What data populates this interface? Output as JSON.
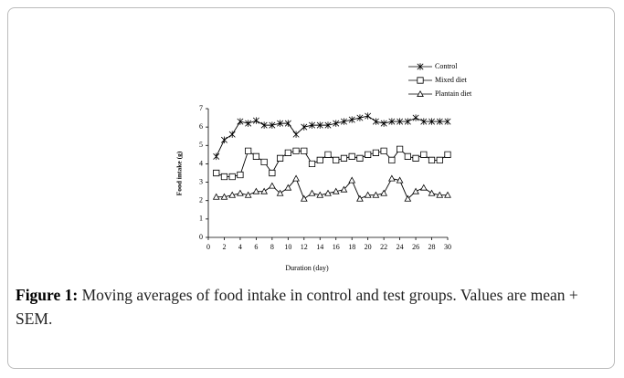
{
  "chart_data": {
    "type": "line",
    "x": [
      1,
      2,
      3,
      4,
      5,
      6,
      7,
      8,
      9,
      10,
      11,
      12,
      13,
      14,
      15,
      16,
      17,
      18,
      19,
      20,
      21,
      22,
      23,
      24,
      25,
      26,
      27,
      28,
      29,
      30
    ],
    "series": [
      {
        "name": "Control",
        "color": "#000000",
        "marker": "star",
        "values": [
          4.4,
          5.3,
          5.6,
          6.3,
          6.2,
          6.35,
          6.1,
          6.1,
          6.2,
          6.2,
          5.6,
          6.0,
          6.1,
          6.1,
          6.1,
          6.2,
          6.3,
          6.4,
          6.5,
          6.6,
          6.3,
          6.2,
          6.3,
          6.3,
          6.3,
          6.5,
          6.3,
          6.3,
          6.3,
          6.3
        ]
      },
      {
        "name": "Mixed diet",
        "color": "#000000",
        "marker": "square",
        "values": [
          3.5,
          3.3,
          3.3,
          3.4,
          4.7,
          4.4,
          4.1,
          3.5,
          4.3,
          4.6,
          4.7,
          4.7,
          4.0,
          4.2,
          4.5,
          4.2,
          4.3,
          4.4,
          4.3,
          4.5,
          4.6,
          4.7,
          4.2,
          4.8,
          4.4,
          4.3,
          4.5,
          4.2,
          4.2,
          4.5
        ]
      },
      {
        "name": "Plantain diet",
        "color": "#000000",
        "marker": "triangle",
        "values": [
          2.2,
          2.2,
          2.3,
          2.4,
          2.3,
          2.5,
          2.5,
          2.8,
          2.4,
          2.7,
          3.2,
          2.1,
          2.4,
          2.3,
          2.4,
          2.5,
          2.6,
          3.1,
          2.1,
          2.3,
          2.3,
          2.4,
          3.2,
          3.1,
          2.1,
          2.5,
          2.7,
          2.4,
          2.3,
          2.3
        ]
      }
    ],
    "xlabel": "Duration (day)",
    "ylabel": "Food intake (g)",
    "xlim": [
      0,
      30
    ],
    "xticks": [
      0,
      2,
      4,
      6,
      8,
      10,
      12,
      14,
      16,
      18,
      20,
      22,
      24,
      26,
      28,
      30
    ],
    "ylim": [
      0,
      7
    ],
    "yticks": [
      0,
      1,
      2,
      3,
      4,
      5,
      6,
      7
    ],
    "legend": "upper right"
  },
  "caption": {
    "label": "Figure 1:",
    "text": "Moving averages of food intake in control and test groups. Values are mean + SEM."
  }
}
